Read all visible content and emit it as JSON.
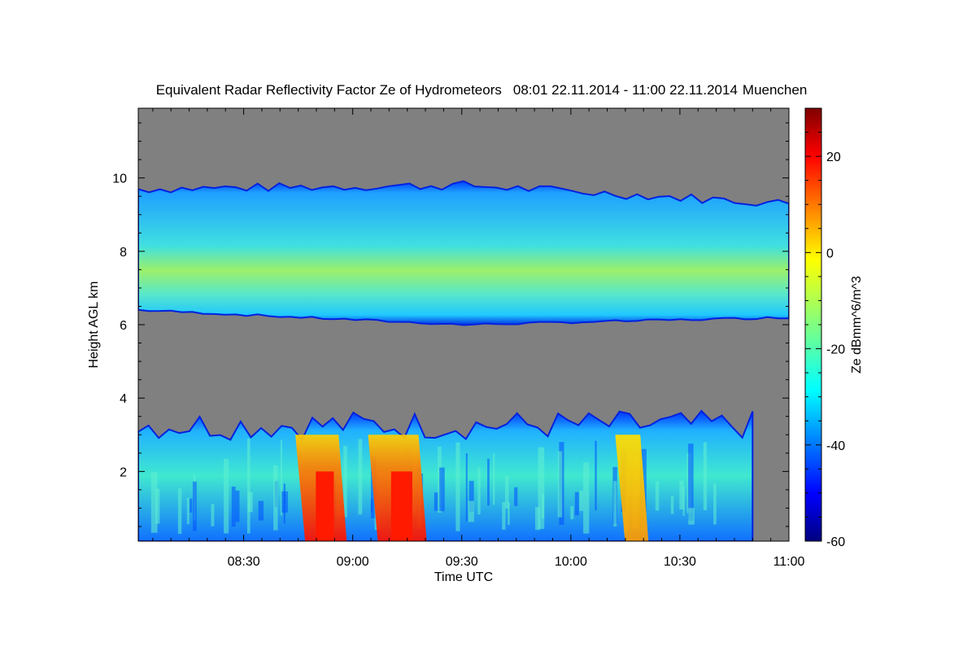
{
  "chart_data": {
    "type": "heatmap",
    "title": "Equivalent Radar Reflectivity Factor Ze of Hydrometeors",
    "time_range": "08:01 22.11.2014 - 11:00 22.11.2014",
    "location": "Muenchen",
    "xlabel": "Time UTC",
    "ylabel": "Height AGL km",
    "xlim": [
      "08:01",
      "11:00"
    ],
    "ylim": [
      0.1,
      11.9
    ],
    "x_ticks": [
      "08:30",
      "09:00",
      "09:30",
      "10:00",
      "10:30",
      "11:00"
    ],
    "y_ticks": [
      "2",
      "4",
      "6",
      "8",
      "10"
    ],
    "colorbar": {
      "label": "Ze dBmm^6/m^3",
      "range": [
        -60,
        30
      ],
      "ticks": [
        "20",
        "0",
        "-20",
        "-40",
        "-60"
      ],
      "colormap": "jet"
    },
    "background_color": "#808080",
    "features": [
      {
        "name": "upper cloud layer",
        "time_start": "08:01",
        "time_end": "11:00",
        "base_km": [
          6.4,
          6.0,
          6.2
        ],
        "top_km": [
          9.7,
          9.8,
          9.3
        ],
        "typical_ze_dbz": -20
      },
      {
        "name": "lower precipitation",
        "time_start": "08:01",
        "time_end": "10:50",
        "base_km": 0.1,
        "top_km": 3.1,
        "typical_ze_dbz": -25
      },
      {
        "name": "strong precipitation core",
        "time_start": "08:46",
        "time_end": "08:57",
        "max_ze_dbz": 25
      },
      {
        "name": "strong precipitation core",
        "time_start": "09:06",
        "time_end": "09:19",
        "max_ze_dbz": 15
      },
      {
        "name": "moderate precipitation core",
        "time_start": "10:14",
        "time_end": "10:20",
        "max_ze_dbz": 0
      }
    ]
  }
}
